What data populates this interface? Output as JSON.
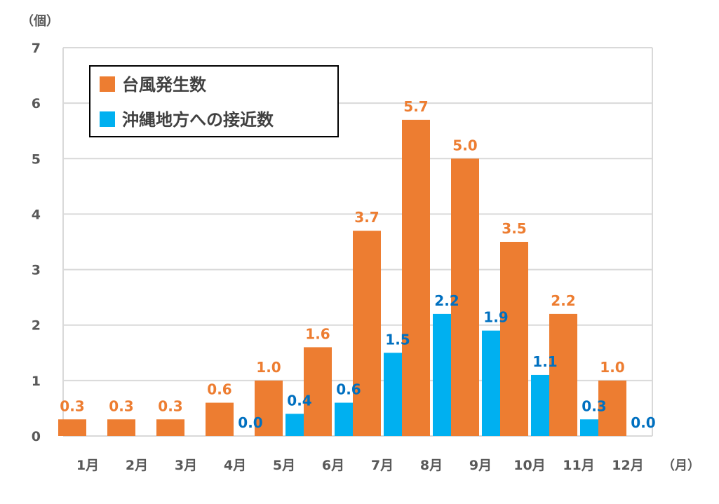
{
  "chart_data": {
    "type": "bar",
    "y_unit_label": "（個）",
    "x_unit_label": "（月）",
    "categories": [
      "1月",
      "2月",
      "3月",
      "4月",
      "5月",
      "6月",
      "7月",
      "8月",
      "9月",
      "10月",
      "11月",
      "12月"
    ],
    "series": [
      {
        "name": "台風発生数",
        "color": "#ED7D31",
        "label_color": "#ED7D31",
        "values": [
          0.3,
          0.3,
          0.3,
          0.6,
          1.0,
          1.6,
          3.7,
          5.7,
          5.0,
          3.5,
          2.2,
          1.0
        ],
        "labels": [
          "0.3",
          "0.3",
          "0.3",
          "0.6",
          "1.0",
          "1.6",
          "3.7",
          "5.7",
          "5.0",
          "3.5",
          "2.2",
          "1.0"
        ]
      },
      {
        "name": "沖縄地方への接近数",
        "color": "#00B0F0",
        "label_color": "#0070C0",
        "values": [
          null,
          null,
          null,
          0.0,
          0.4,
          0.6,
          1.5,
          2.2,
          1.9,
          1.1,
          0.3,
          0.0
        ],
        "labels": [
          null,
          null,
          null,
          "0.0",
          "0.4",
          "0.6",
          "1.5",
          "2.2",
          "1.9",
          "1.1",
          "0.3",
          "0.0"
        ]
      }
    ],
    "ylim": [
      0,
      7
    ],
    "yticks": [
      0,
      1,
      2,
      3,
      4,
      5,
      6,
      7
    ],
    "grid": true,
    "legend_position": "top-left"
  }
}
